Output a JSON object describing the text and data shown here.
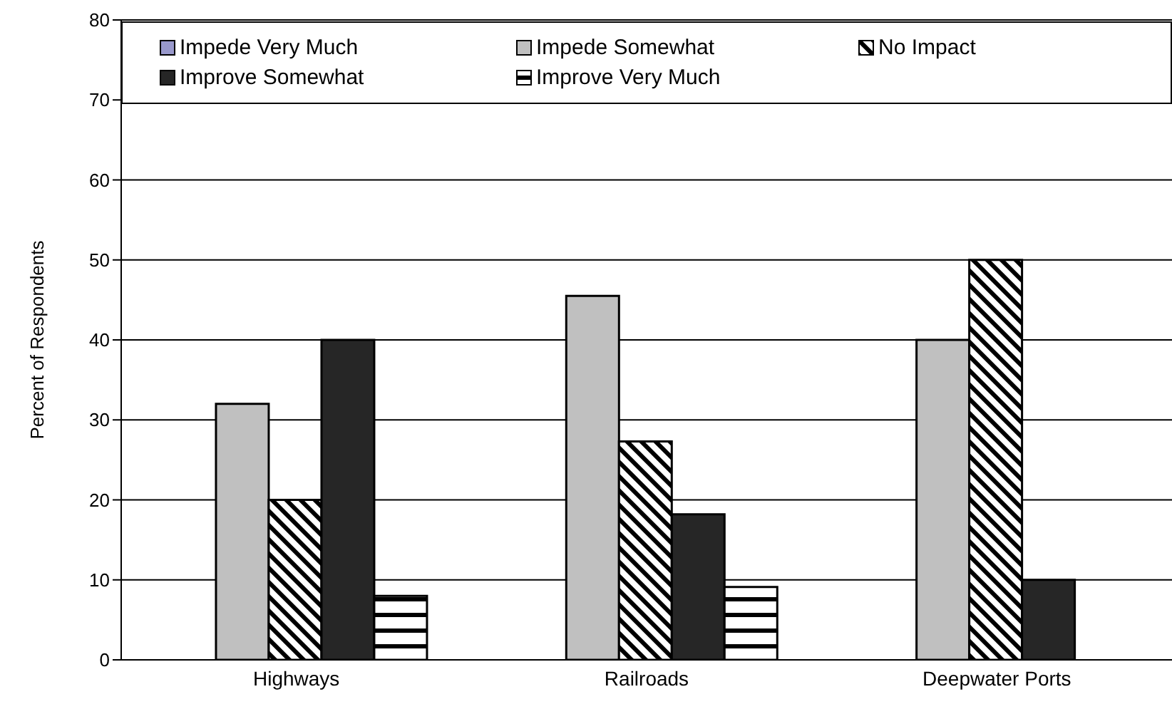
{
  "chart_data": {
    "type": "bar",
    "ylabel": "Percent of Respondents",
    "categories": [
      "Highways",
      "Railroads",
      "Deepwater Ports"
    ],
    "series": [
      {
        "name": "Impede Very Much",
        "color": "#9999cc",
        "values": [
          0,
          0,
          0
        ]
      },
      {
        "name": "Impede Somewhat",
        "color": "#c0c0c0",
        "values": [
          32,
          45.5,
          40
        ]
      },
      {
        "name": "No Impact",
        "color": "#000000",
        "values": [
          20,
          27.3,
          50
        ]
      },
      {
        "name": "Improve Somewhat",
        "color": "#262626",
        "values": [
          40,
          18.2,
          10
        ]
      },
      {
        "name": "Improve Very Much",
        "color": "#000000",
        "values": [
          8,
          9.1,
          0
        ]
      }
    ],
    "ylim": [
      0,
      80
    ],
    "yticks": [
      0,
      10,
      20,
      30,
      40,
      50,
      60,
      70,
      80
    ],
    "grid": "y",
    "legend": "top"
  }
}
